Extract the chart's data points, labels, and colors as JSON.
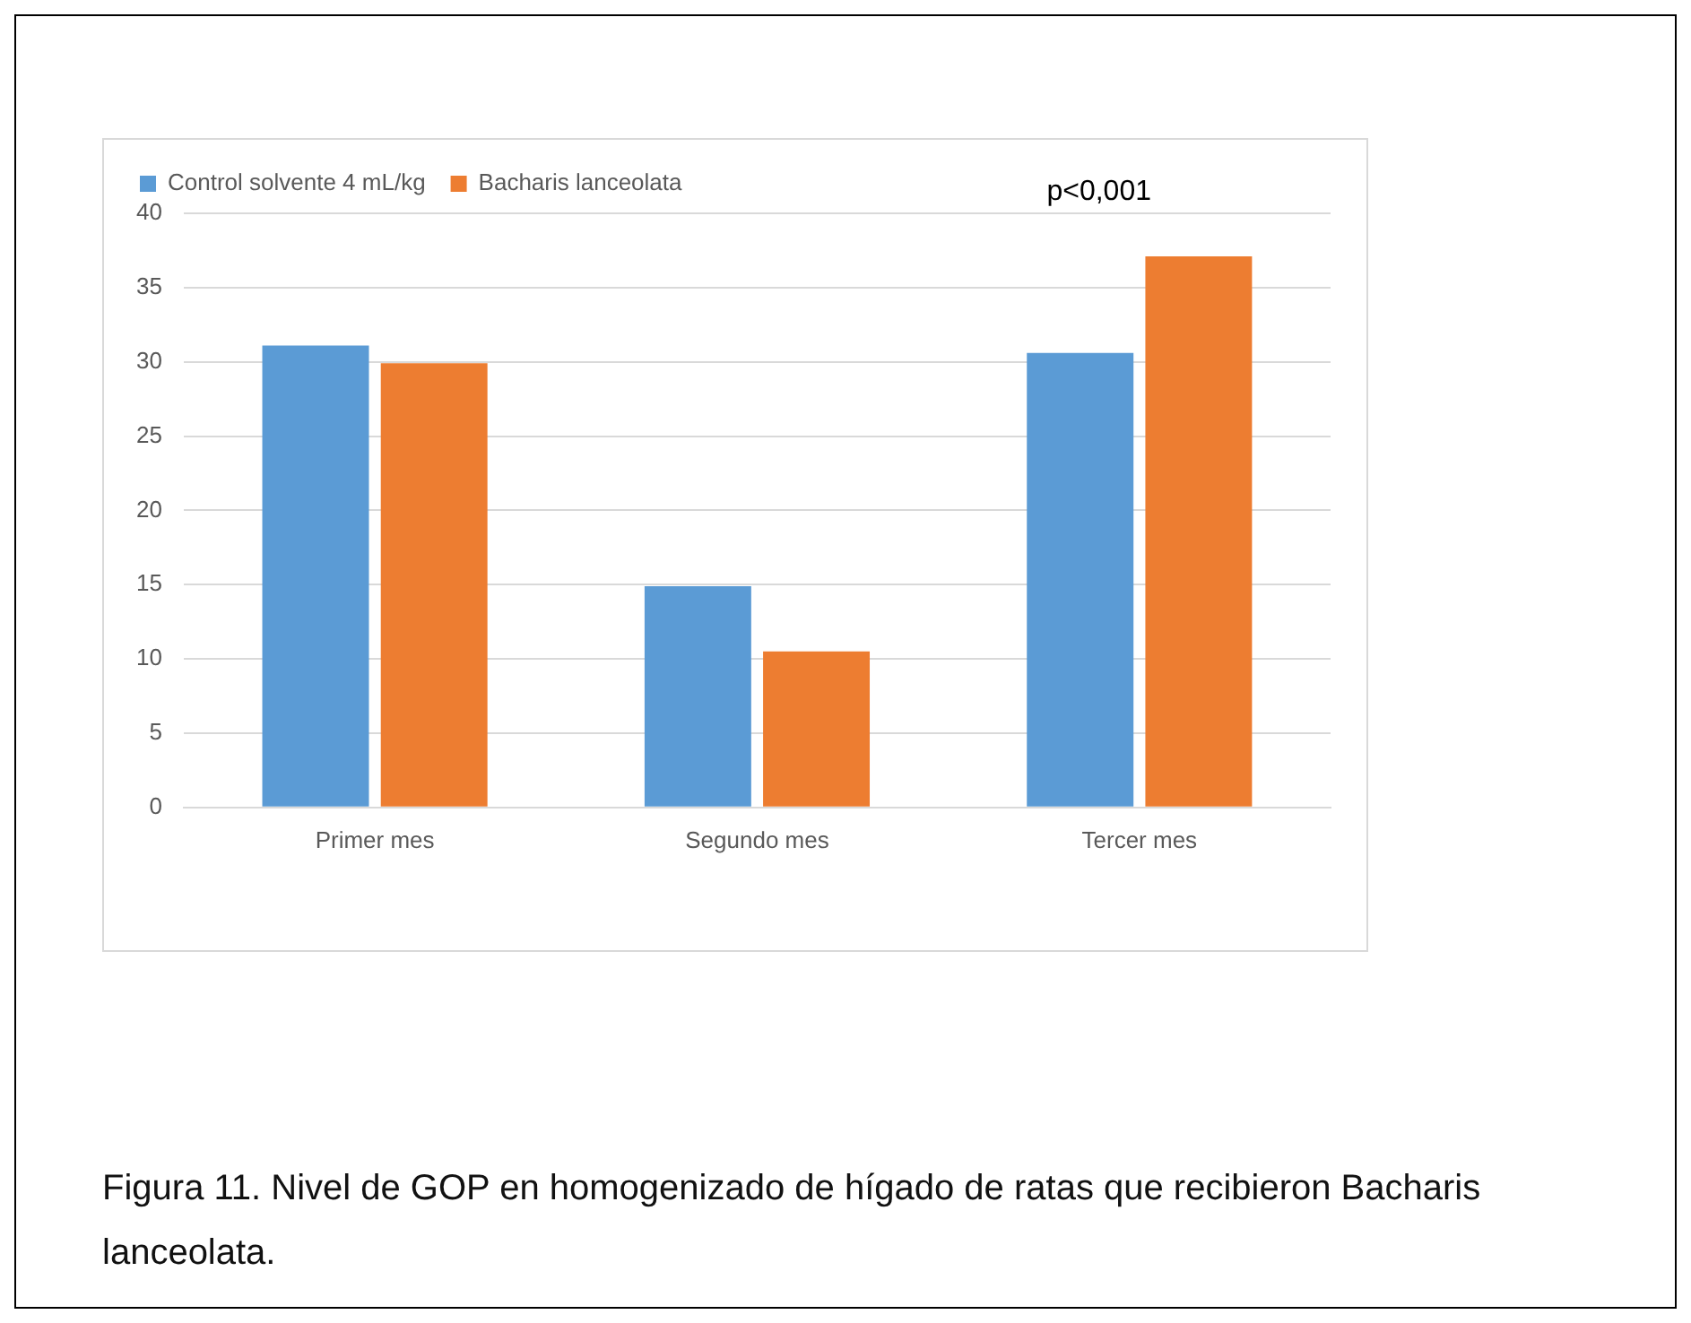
{
  "chart_data": {
    "type": "bar",
    "categories": [
      "Primer mes",
      "Segundo mes",
      "Tercer mes"
    ],
    "series": [
      {
        "name": "Control solvente 4 mL/kg",
        "color": "#5b9bd5",
        "values": [
          31.1,
          14.9,
          30.6
        ]
      },
      {
        "name": "Bacharis lanceolata",
        "color": "#ed7d31",
        "values": [
          29.9,
          10.5,
          37.1
        ]
      }
    ],
    "ylim": [
      0,
      40
    ],
    "yticks": [
      0,
      5,
      10,
      15,
      20,
      25,
      30,
      35,
      40
    ],
    "grid": "y",
    "legend": "top",
    "annotations": [
      "p<0,001",
      "Figura 11. Nivel de GOP en homogenizado de hígado de ratas que recibieron Bacharis lanceolata."
    ]
  }
}
